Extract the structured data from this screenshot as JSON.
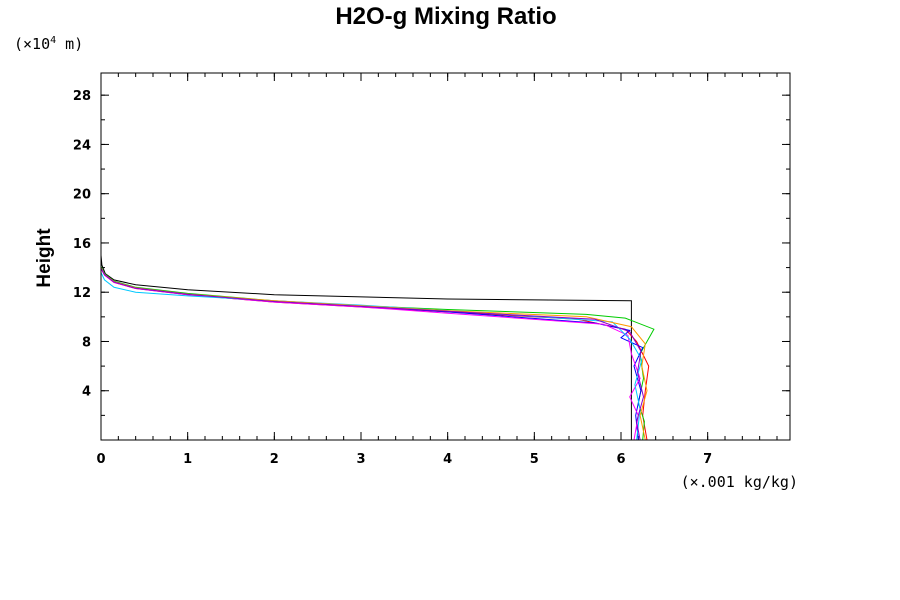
{
  "chart_data": {
    "type": "line",
    "title": "H2O-g Mixing Ratio",
    "ylabel": "Height",
    "yunit": "(×10",
    "yunit_exp": "4",
    "yunit_tail": " m)",
    "xunit": "(×.001 kg/kg)",
    "xlim": [
      0,
      7.95
    ],
    "ylim": [
      0,
      29.8
    ],
    "x_ticks": [
      0,
      1,
      2,
      3,
      4,
      5,
      6,
      7
    ],
    "y_ticks": [
      4,
      8,
      12,
      16,
      20,
      24,
      28
    ],
    "grid": false,
    "series": [
      {
        "color": "#000000",
        "points": [
          [
            6.12,
            0
          ],
          [
            6.12,
            11.3
          ],
          [
            4,
            11.45
          ],
          [
            2,
            11.8
          ],
          [
            1,
            12.2
          ],
          [
            0.4,
            12.6
          ],
          [
            0.15,
            13.0
          ],
          [
            0.05,
            13.5
          ],
          [
            0.01,
            14.2
          ],
          [
            0,
            15
          ]
        ]
      },
      {
        "color": "#ff0000",
        "points": [
          [
            6.3,
            0
          ],
          [
            6.25,
            2
          ],
          [
            6.28,
            4
          ],
          [
            6.32,
            6
          ],
          [
            6.18,
            8
          ],
          [
            6.05,
            9
          ],
          [
            5.5,
            9.8
          ],
          [
            4,
            10.4
          ],
          [
            3,
            10.8
          ],
          [
            2,
            11.2
          ],
          [
            1,
            11.8
          ],
          [
            0.4,
            12.3
          ],
          [
            0.15,
            12.8
          ],
          [
            0.04,
            13.4
          ],
          [
            0,
            14
          ]
        ]
      },
      {
        "color": "#00cc00",
        "points": [
          [
            6.25,
            0
          ],
          [
            6.27,
            1.5
          ],
          [
            6.2,
            3
          ],
          [
            6.26,
            5
          ],
          [
            6.22,
            7
          ],
          [
            6.3,
            8
          ],
          [
            6.38,
            9
          ],
          [
            6.05,
            9.9
          ],
          [
            5.6,
            10.2
          ],
          [
            4,
            10.6
          ],
          [
            3,
            10.9
          ],
          [
            2,
            11.3
          ],
          [
            1,
            11.9
          ],
          [
            0.4,
            12.4
          ],
          [
            0.15,
            12.9
          ],
          [
            0.04,
            13.5
          ],
          [
            0,
            14.1
          ]
        ]
      },
      {
        "color": "#0000ff",
        "points": [
          [
            6.2,
            0
          ],
          [
            6.17,
            2
          ],
          [
            6.23,
            4
          ],
          [
            6.15,
            6
          ],
          [
            6.25,
            7.5
          ],
          [
            6.0,
            8.3
          ],
          [
            6.1,
            8.9
          ],
          [
            5.7,
            9.5
          ],
          [
            4,
            10.4
          ],
          [
            3,
            10.85
          ],
          [
            2,
            11.25
          ],
          [
            1,
            11.85
          ],
          [
            0.4,
            12.35
          ],
          [
            0.15,
            12.85
          ],
          [
            0.04,
            13.45
          ],
          [
            0,
            14
          ]
        ]
      },
      {
        "color": "#ff00ff",
        "points": [
          [
            6.15,
            0
          ],
          [
            6.2,
            2
          ],
          [
            6.1,
            3.5
          ],
          [
            6.22,
            5
          ],
          [
            6.12,
            7
          ],
          [
            6.08,
            8.5
          ],
          [
            5.8,
            9.4
          ],
          [
            4,
            10.3
          ],
          [
            3,
            10.8
          ],
          [
            2,
            11.2
          ],
          [
            1,
            11.8
          ],
          [
            0.4,
            12.3
          ],
          [
            0.15,
            12.8
          ],
          [
            0.04,
            13.4
          ],
          [
            0,
            13.9
          ]
        ]
      },
      {
        "color": "#00c8ff",
        "points": [
          [
            6.18,
            0
          ],
          [
            6.22,
            2.5
          ],
          [
            6.16,
            4.5
          ],
          [
            6.24,
            6.5
          ],
          [
            6.1,
            8.2
          ],
          [
            5.9,
            9.6
          ],
          [
            4,
            10.5
          ],
          [
            3,
            10.95
          ],
          [
            2,
            11.3
          ],
          [
            1,
            11.7
          ],
          [
            0.4,
            12.0
          ],
          [
            0.15,
            12.4
          ],
          [
            0.04,
            13.0
          ],
          [
            0,
            13.6
          ]
        ]
      },
      {
        "color": "#ff9900",
        "points": [
          [
            6.28,
            0
          ],
          [
            6.22,
            2
          ],
          [
            6.3,
            4
          ],
          [
            6.24,
            6
          ],
          [
            6.28,
            7.8
          ],
          [
            6.12,
            9.2
          ],
          [
            5.6,
            10
          ],
          [
            4,
            10.5
          ],
          [
            3,
            10.9
          ],
          [
            2,
            11.3
          ],
          [
            1,
            11.85
          ],
          [
            0.4,
            12.35
          ],
          [
            0.15,
            12.85
          ],
          [
            0.04,
            13.45
          ],
          [
            0,
            14
          ]
        ]
      },
      {
        "color": "#8800cc",
        "points": [
          [
            6.22,
            0
          ],
          [
            6.18,
            1.5
          ],
          [
            6.26,
            3.5
          ],
          [
            6.19,
            5.5
          ],
          [
            6.23,
            7.2
          ],
          [
            6.1,
            8.8
          ],
          [
            5.7,
            9.8
          ],
          [
            4,
            10.45
          ],
          [
            3,
            10.85
          ],
          [
            2,
            11.25
          ],
          [
            1,
            11.82
          ],
          [
            0.4,
            12.32
          ],
          [
            0.15,
            12.82
          ],
          [
            0.04,
            13.42
          ],
          [
            0,
            13.95
          ]
        ]
      },
      {
        "color": "#cc00cc",
        "points": [
          [
            0,
            15.5
          ],
          [
            0,
            29.8
          ]
        ]
      }
    ]
  }
}
